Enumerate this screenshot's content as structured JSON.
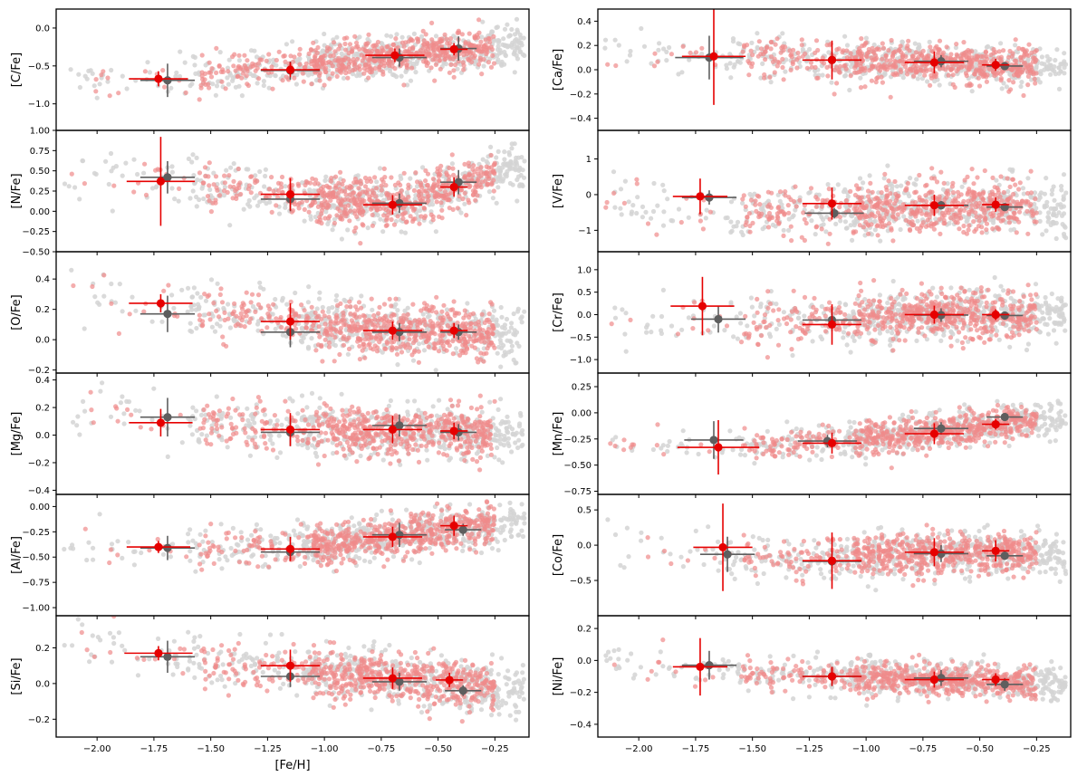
{
  "figure": {
    "x_label": "[Fe/H]",
    "x_range": [
      -2.18,
      -0.1
    ],
    "x_ticks": [
      -2.0,
      -1.75,
      -1.5,
      -1.25,
      -1.0,
      -0.75,
      -0.5,
      -0.25
    ],
    "x_tick_labels": [
      "−2.00",
      "−1.75",
      "−1.50",
      "−1.25",
      "−1.00",
      "−0.75",
      "−0.50",
      "−0.25"
    ],
    "colors": {
      "sample_a_points": "#f08a8a",
      "sample_b_points": "#d3d3d3",
      "sample_a_means": "#e60000",
      "sample_b_means": "#5e5e5e"
    }
  },
  "chart_data": [
    {
      "type": "scatter",
      "ylabel": "[C/Fe]",
      "ylim": [
        -1.35,
        0.25
      ],
      "yticks": [
        0.0,
        -0.5,
        -1.0
      ],
      "ytick_labels": [
        "0.0",
        "−0.5",
        "−1.0"
      ],
      "trend": [
        [
          -2.1,
          -0.72
        ],
        [
          -1.5,
          -0.62
        ],
        [
          -1.0,
          -0.45
        ],
        [
          -0.6,
          -0.33
        ],
        [
          -0.2,
          -0.25
        ]
      ],
      "scatter": 0.13,
      "means_a": [
        {
          "x": -1.73,
          "y": -0.67,
          "xerr": 0.13,
          "yerr": 0.1
        },
        {
          "x": -1.15,
          "y": -0.55,
          "xerr": 0.13,
          "yerr": 0.1
        },
        {
          "x": -0.69,
          "y": -0.36,
          "xerr": 0.13,
          "yerr": 0.09
        },
        {
          "x": -0.43,
          "y": -0.28,
          "xerr": 0.06,
          "yerr": 0.08
        }
      ],
      "means_b": [
        {
          "x": -1.69,
          "y": -0.69,
          "xerr": 0.12,
          "yerr": 0.22
        },
        {
          "x": -1.15,
          "y": -0.56,
          "xerr": 0.13,
          "yerr": 0.12
        },
        {
          "x": -0.67,
          "y": -0.39,
          "xerr": 0.12,
          "yerr": 0.12
        },
        {
          "x": -0.41,
          "y": -0.27,
          "xerr": 0.08,
          "yerr": 0.16
        }
      ]
    },
    {
      "type": "scatter",
      "ylabel": "[N/Fe]",
      "ylim": [
        -0.5,
        1.0
      ],
      "yticks": [
        1.0,
        0.75,
        0.5,
        0.25,
        0.0,
        -0.25,
        -0.5
      ],
      "ytick_labels": [
        "1.00",
        "0.75",
        "0.50",
        "0.25",
        "0.00",
        "−0.25",
        "−0.50"
      ],
      "trend": [
        [
          -2.1,
          0.45
        ],
        [
          -1.5,
          0.3
        ],
        [
          -1.0,
          0.15
        ],
        [
          -0.7,
          0.1
        ],
        [
          -0.45,
          0.28
        ],
        [
          -0.2,
          0.5
        ]
      ],
      "scatter": 0.15,
      "means_a": [
        {
          "x": -1.72,
          "y": 0.37,
          "xerr": 0.15,
          "yerr": 0.55
        },
        {
          "x": -1.15,
          "y": 0.21,
          "xerr": 0.13,
          "yerr": 0.2
        },
        {
          "x": -0.7,
          "y": 0.08,
          "xerr": 0.13,
          "yerr": 0.12
        },
        {
          "x": -0.43,
          "y": 0.3,
          "xerr": 0.06,
          "yerr": 0.12
        }
      ],
      "means_b": [
        {
          "x": -1.69,
          "y": 0.42,
          "xerr": 0.12,
          "yerr": 0.2
        },
        {
          "x": -1.15,
          "y": 0.15,
          "xerr": 0.13,
          "yerr": 0.15
        },
        {
          "x": -0.67,
          "y": 0.1,
          "xerr": 0.12,
          "yerr": 0.12
        },
        {
          "x": -0.41,
          "y": 0.36,
          "xerr": 0.08,
          "yerr": 0.15
        }
      ]
    },
    {
      "type": "scatter",
      "ylabel": "[O/Fe]",
      "ylim": [
        -0.22,
        0.58
      ],
      "yticks": [
        0.4,
        0.2,
        0.0,
        -0.2
      ],
      "ytick_labels": [
        "0.4",
        "0.2",
        "0.0",
        "−0.2"
      ],
      "trend": [
        [
          -2.1,
          0.3
        ],
        [
          -1.5,
          0.2
        ],
        [
          -1.0,
          0.1
        ],
        [
          -0.6,
          0.06
        ],
        [
          -0.2,
          0.03
        ]
      ],
      "scatter": 0.08,
      "means_a": [
        {
          "x": -1.72,
          "y": 0.24,
          "xerr": 0.14,
          "yerr": 0.06
        },
        {
          "x": -1.15,
          "y": 0.12,
          "xerr": 0.13,
          "yerr": 0.12
        },
        {
          "x": -0.7,
          "y": 0.06,
          "xerr": 0.13,
          "yerr": 0.06
        },
        {
          "x": -0.43,
          "y": 0.06,
          "xerr": 0.06,
          "yerr": 0.05
        }
      ],
      "means_b": [
        {
          "x": -1.69,
          "y": 0.17,
          "xerr": 0.12,
          "yerr": 0.12
        },
        {
          "x": -1.15,
          "y": 0.05,
          "xerr": 0.13,
          "yerr": 0.1
        },
        {
          "x": -0.67,
          "y": 0.05,
          "xerr": 0.12,
          "yerr": 0.06
        },
        {
          "x": -0.41,
          "y": 0.05,
          "xerr": 0.08,
          "yerr": 0.05
        }
      ]
    },
    {
      "type": "scatter",
      "ylabel": "[Mg/Fe]",
      "ylim": [
        -0.43,
        0.45
      ],
      "yticks": [
        0.4,
        0.2,
        0.0,
        -0.2,
        -0.4
      ],
      "ytick_labels": [
        "0.4",
        "0.2",
        "0.0",
        "−0.2",
        "−0.4"
      ],
      "trend": [
        [
          -2.1,
          0.2
        ],
        [
          -1.5,
          0.08
        ],
        [
          -1.0,
          0.04
        ],
        [
          -0.6,
          0.03
        ],
        [
          -0.2,
          0.02
        ]
      ],
      "scatter": 0.09,
      "means_a": [
        {
          "x": -1.72,
          "y": 0.09,
          "xerr": 0.14,
          "yerr": 0.1
        },
        {
          "x": -1.15,
          "y": 0.04,
          "xerr": 0.13,
          "yerr": 0.12
        },
        {
          "x": -0.7,
          "y": 0.04,
          "xerr": 0.13,
          "yerr": 0.1
        },
        {
          "x": -0.43,
          "y": 0.03,
          "xerr": 0.06,
          "yerr": 0.06
        }
      ],
      "means_b": [
        {
          "x": -1.69,
          "y": 0.13,
          "xerr": 0.12,
          "yerr": 0.14
        },
        {
          "x": -1.15,
          "y": 0.02,
          "xerr": 0.13,
          "yerr": 0.1
        },
        {
          "x": -0.67,
          "y": 0.07,
          "xerr": 0.12,
          "yerr": 0.08
        },
        {
          "x": -0.41,
          "y": 0.02,
          "xerr": 0.08,
          "yerr": 0.06
        }
      ]
    },
    {
      "type": "scatter",
      "ylabel": "[Al/Fe]",
      "ylim": [
        -1.08,
        0.12
      ],
      "yticks": [
        0.0,
        -0.25,
        -0.5,
        -0.75,
        -1.0
      ],
      "ytick_labels": [
        "0.00",
        "−0.25",
        "−0.50",
        "−0.75",
        "−1.00"
      ],
      "trend": [
        [
          -2.1,
          -0.38
        ],
        [
          -1.5,
          -0.42
        ],
        [
          -1.0,
          -0.38
        ],
        [
          -0.7,
          -0.3
        ],
        [
          -0.4,
          -0.2
        ],
        [
          -0.2,
          -0.15
        ]
      ],
      "scatter": 0.1,
      "means_a": [
        {
          "x": -1.73,
          "y": -0.4,
          "xerr": 0.14,
          "yerr": 0.06
        },
        {
          "x": -1.15,
          "y": -0.42,
          "xerr": 0.13,
          "yerr": 0.12
        },
        {
          "x": -0.7,
          "y": -0.3,
          "xerr": 0.13,
          "yerr": 0.1
        },
        {
          "x": -0.43,
          "y": -0.19,
          "xerr": 0.06,
          "yerr": 0.1
        }
      ],
      "means_b": [
        {
          "x": -1.69,
          "y": -0.41,
          "xerr": 0.12,
          "yerr": 0.12
        },
        {
          "x": -1.15,
          "y": -0.45,
          "xerr": 0.13,
          "yerr": 0.08
        },
        {
          "x": -0.67,
          "y": -0.28,
          "xerr": 0.12,
          "yerr": 0.12
        },
        {
          "x": -0.39,
          "y": -0.23,
          "xerr": 0.08,
          "yerr": 0.06
        }
      ]
    },
    {
      "type": "scatter",
      "ylabel": "[Si/Fe]",
      "ylim": [
        -0.3,
        0.38
      ],
      "yticks": [
        0.2,
        0.0,
        -0.2
      ],
      "ytick_labels": [
        "0.2",
        "0.0",
        "−0.2"
      ],
      "trend": [
        [
          -2.1,
          0.22
        ],
        [
          -1.5,
          0.12
        ],
        [
          -1.0,
          0.06
        ],
        [
          -0.6,
          0.02
        ],
        [
          -0.2,
          -0.03
        ]
      ],
      "scatter": 0.07,
      "means_a": [
        {
          "x": -1.73,
          "y": 0.17,
          "xerr": 0.15,
          "yerr": 0.04
        },
        {
          "x": -1.15,
          "y": 0.1,
          "xerr": 0.13,
          "yerr": 0.09
        },
        {
          "x": -0.7,
          "y": 0.03,
          "xerr": 0.13,
          "yerr": 0.06
        },
        {
          "x": -0.45,
          "y": 0.02,
          "xerr": 0.06,
          "yerr": 0.04
        }
      ],
      "means_b": [
        {
          "x": -1.69,
          "y": 0.15,
          "xerr": 0.12,
          "yerr": 0.09
        },
        {
          "x": -1.15,
          "y": 0.04,
          "xerr": 0.13,
          "yerr": 0.06
        },
        {
          "x": -0.67,
          "y": 0.01,
          "xerr": 0.12,
          "yerr": 0.05
        },
        {
          "x": -0.39,
          "y": -0.04,
          "xerr": 0.08,
          "yerr": 0.03
        }
      ]
    },
    {
      "type": "scatter",
      "ylabel": "[Ca/Fe]",
      "ylim": [
        -0.5,
        0.5
      ],
      "yticks": [
        0.4,
        0.2,
        0.0,
        -0.2,
        -0.4
      ],
      "ytick_labels": [
        "0.4",
        "0.2",
        "0.0",
        "−0.2",
        "−0.4"
      ],
      "trend": [
        [
          -2.1,
          0.12
        ],
        [
          -1.5,
          0.09
        ],
        [
          -1.0,
          0.07
        ],
        [
          -0.6,
          0.05
        ],
        [
          -0.2,
          0.02
        ]
      ],
      "scatter": 0.08,
      "means_a": [
        {
          "x": -1.67,
          "y": 0.11,
          "xerr": 0.14,
          "yerr": 0.4
        },
        {
          "x": -1.15,
          "y": 0.08,
          "xerr": 0.13,
          "yerr": 0.16
        },
        {
          "x": -0.7,
          "y": 0.06,
          "xerr": 0.13,
          "yerr": 0.09
        },
        {
          "x": -0.43,
          "y": 0.04,
          "xerr": 0.06,
          "yerr": 0.05
        }
      ],
      "means_b": [
        {
          "x": -1.69,
          "y": 0.1,
          "xerr": 0.15,
          "yerr": 0.18
        },
        {
          "x": -1.15,
          "y": 0.08,
          "xerr": 0.13,
          "yerr": 0.07
        },
        {
          "x": -0.67,
          "y": 0.07,
          "xerr": 0.12,
          "yerr": 0.05
        },
        {
          "x": -0.39,
          "y": 0.03,
          "xerr": 0.08,
          "yerr": 0.03
        }
      ]
    },
    {
      "type": "scatter",
      "ylabel": "[V/Fe]",
      "ylim": [
        -1.6,
        1.8
      ],
      "yticks": [
        1.0,
        0.0,
        -1.0
      ],
      "ytick_labels": [
        "1",
        "0",
        "−1"
      ],
      "trend": [
        [
          -2.1,
          -0.1
        ],
        [
          -1.5,
          -0.45
        ],
        [
          -1.2,
          -0.45
        ],
        [
          -0.8,
          -0.3
        ],
        [
          -0.2,
          -0.35
        ]
      ],
      "scatter": 0.35,
      "means_a": [
        {
          "x": -1.73,
          "y": -0.05,
          "xerr": 0.12,
          "yerr": 0.5
        },
        {
          "x": -1.15,
          "y": -0.25,
          "xerr": 0.13,
          "yerr": 0.45
        },
        {
          "x": -0.7,
          "y": -0.3,
          "xerr": 0.13,
          "yerr": 0.3
        },
        {
          "x": -0.43,
          "y": -0.28,
          "xerr": 0.06,
          "yerr": 0.2
        }
      ],
      "means_b": [
        {
          "x": -1.69,
          "y": -0.08,
          "xerr": 0.12,
          "yerr": 0.2
        },
        {
          "x": -1.14,
          "y": -0.52,
          "xerr": 0.13,
          "yerr": 0.15
        },
        {
          "x": -0.67,
          "y": -0.3,
          "xerr": 0.12,
          "yerr": 0.12
        },
        {
          "x": -0.39,
          "y": -0.35,
          "xerr": 0.08,
          "yerr": 0.1
        }
      ]
    },
    {
      "type": "scatter",
      "ylabel": "[Cr/Fe]",
      "ylim": [
        -1.3,
        1.4
      ],
      "yticks": [
        1.0,
        0.5,
        0.0,
        -0.5,
        -1.0
      ],
      "ytick_labels": [
        "1.0",
        "0.5",
        "0.0",
        "−0.5",
        "−1.0"
      ],
      "trend": [
        [
          -2.1,
          -0.1
        ],
        [
          -1.5,
          -0.15
        ],
        [
          -1.0,
          -0.05
        ],
        [
          -0.6,
          0.0
        ],
        [
          -0.2,
          -0.02
        ]
      ],
      "scatter": 0.28,
      "means_a": [
        {
          "x": -1.72,
          "y": 0.19,
          "xerr": 0.14,
          "yerr": 0.65
        },
        {
          "x": -1.15,
          "y": -0.22,
          "xerr": 0.13,
          "yerr": 0.45
        },
        {
          "x": -0.7,
          "y": 0.0,
          "xerr": 0.13,
          "yerr": 0.2
        },
        {
          "x": -0.43,
          "y": 0.0,
          "xerr": 0.06,
          "yerr": 0.12
        }
      ],
      "means_b": [
        {
          "x": -1.65,
          "y": -0.1,
          "xerr": 0.12,
          "yerr": 0.3
        },
        {
          "x": -1.15,
          "y": -0.12,
          "xerr": 0.13,
          "yerr": 0.25
        },
        {
          "x": -0.67,
          "y": -0.01,
          "xerr": 0.12,
          "yerr": 0.15
        },
        {
          "x": -0.39,
          "y": -0.02,
          "xerr": 0.08,
          "yerr": 0.07
        }
      ]
    },
    {
      "type": "scatter",
      "ylabel": "[Mn/Fe]",
      "ylim": [
        -0.78,
        0.38
      ],
      "yticks": [
        0.25,
        0.0,
        -0.25,
        -0.5,
        -0.75
      ],
      "ytick_labels": [
        "0.25",
        "0.00",
        "−0.25",
        "−0.50",
        "−0.75"
      ],
      "trend": [
        [
          -2.1,
          -0.3
        ],
        [
          -1.5,
          -0.32
        ],
        [
          -1.0,
          -0.25
        ],
        [
          -0.6,
          -0.15
        ],
        [
          -0.2,
          -0.05
        ]
      ],
      "scatter": 0.08,
      "means_a": [
        {
          "x": -1.65,
          "y": -0.33,
          "xerr": 0.18,
          "yerr": 0.26
        },
        {
          "x": -1.15,
          "y": -0.29,
          "xerr": 0.13,
          "yerr": 0.1
        },
        {
          "x": -0.7,
          "y": -0.2,
          "xerr": 0.13,
          "yerr": 0.1
        },
        {
          "x": -0.43,
          "y": -0.11,
          "xerr": 0.06,
          "yerr": 0.05
        }
      ],
      "means_b": [
        {
          "x": -1.67,
          "y": -0.26,
          "xerr": 0.13,
          "yerr": 0.18
        },
        {
          "x": -1.17,
          "y": -0.27,
          "xerr": 0.13,
          "yerr": 0.06
        },
        {
          "x": -0.67,
          "y": -0.15,
          "xerr": 0.12,
          "yerr": 0.06
        },
        {
          "x": -0.39,
          "y": -0.04,
          "xerr": 0.08,
          "yerr": 0.03
        }
      ]
    },
    {
      "type": "scatter",
      "ylabel": "[Co/Fe]",
      "ylim": [
        -1.0,
        0.72
      ],
      "yticks": [
        0.5,
        0.0,
        -0.5
      ],
      "ytick_labels": [
        "0.5",
        "0.0",
        "−0.5"
      ],
      "trend": [
        [
          -2.1,
          -0.05
        ],
        [
          -1.5,
          -0.2
        ],
        [
          -1.0,
          -0.15
        ],
        [
          -0.6,
          -0.1
        ],
        [
          -0.2,
          -0.12
        ]
      ],
      "scatter": 0.15,
      "means_a": [
        {
          "x": -1.63,
          "y": -0.03,
          "xerr": 0.13,
          "yerr": 0.62
        },
        {
          "x": -1.15,
          "y": -0.22,
          "xerr": 0.13,
          "yerr": 0.4
        },
        {
          "x": -0.7,
          "y": -0.1,
          "xerr": 0.13,
          "yerr": 0.2
        },
        {
          "x": -0.43,
          "y": -0.08,
          "xerr": 0.06,
          "yerr": 0.15
        }
      ],
      "means_b": [
        {
          "x": -1.61,
          "y": -0.13,
          "xerr": 0.12,
          "yerr": 0.25
        },
        {
          "x": -1.15,
          "y": -0.23,
          "xerr": 0.13,
          "yerr": 0.15
        },
        {
          "x": -0.67,
          "y": -0.12,
          "xerr": 0.12,
          "yerr": 0.12
        },
        {
          "x": -0.39,
          "y": -0.15,
          "xerr": 0.08,
          "yerr": 0.06
        }
      ]
    },
    {
      "type": "scatter",
      "ylabel": "[Ni/Fe]",
      "ylim": [
        -0.48,
        0.28
      ],
      "yticks": [
        0.2,
        0.0,
        -0.2,
        -0.4
      ],
      "ytick_labels": [
        "0.2",
        "0.0",
        "−0.2",
        "−0.4"
      ],
      "trend": [
        [
          -2.1,
          -0.02
        ],
        [
          -1.5,
          -0.08
        ],
        [
          -1.0,
          -0.1
        ],
        [
          -0.6,
          -0.12
        ],
        [
          -0.2,
          -0.14
        ]
      ],
      "scatter": 0.05,
      "means_a": [
        {
          "x": -1.73,
          "y": -0.04,
          "xerr": 0.12,
          "yerr": 0.18
        },
        {
          "x": -1.15,
          "y": -0.1,
          "xerr": 0.13,
          "yerr": 0.06
        },
        {
          "x": -0.7,
          "y": -0.12,
          "xerr": 0.13,
          "yerr": 0.05
        },
        {
          "x": -0.43,
          "y": -0.12,
          "xerr": 0.06,
          "yerr": 0.04
        }
      ],
      "means_b": [
        {
          "x": -1.69,
          "y": -0.03,
          "xerr": 0.12,
          "yerr": 0.09
        },
        {
          "x": -1.15,
          "y": -0.1,
          "xerr": 0.13,
          "yerr": 0.06
        },
        {
          "x": -0.67,
          "y": -0.11,
          "xerr": 0.12,
          "yerr": 0.05
        },
        {
          "x": -0.39,
          "y": -0.15,
          "xerr": 0.08,
          "yerr": 0.04
        }
      ]
    }
  ]
}
